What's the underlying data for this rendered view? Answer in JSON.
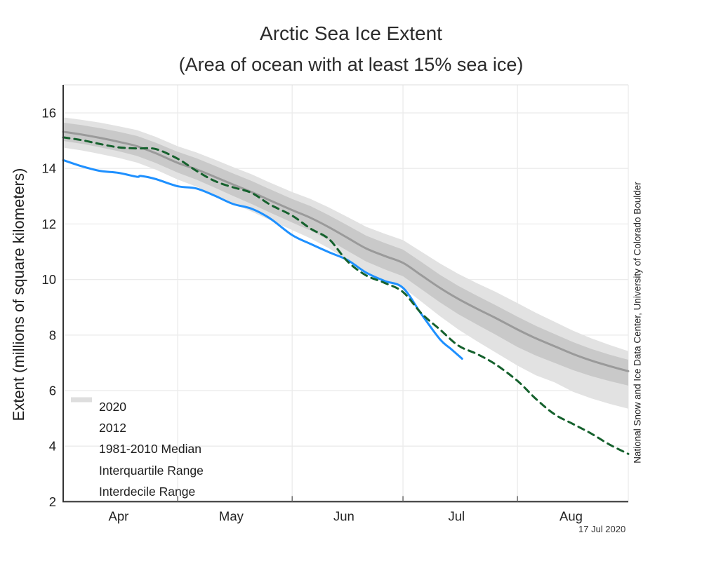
{
  "title": "Arctic Sea Ice Extent",
  "subtitle": "(Area of ocean with at least 15% sea ice)",
  "ylabel": "Extent (millions of square kilometers)",
  "attribution": "National Snow and Ice Data Center, University of Colorado Boulder",
  "date_stamp": "17 Jul 2020",
  "colors": {
    "line_2020": "#1E90FF",
    "line_2012": "#15612D",
    "median": "#9A9A9A",
    "iqr_band": "#C9C9C9",
    "idr_band": "#E2E2E2",
    "axis": "#333333",
    "grid": "#EBEBEB",
    "frame": "#DDDDDD",
    "text": "#222222"
  },
  "chart_data": {
    "type": "line",
    "title": "Arctic Sea Ice Extent",
    "subtitle": "(Area of ocean with at least 15% sea ice)",
    "xlabel": "",
    "ylabel": "Extent (millions of square kilometers)",
    "x_start_date": "Mar 31",
    "x_unit": "days since Mar 31",
    "xlim_days": [
      0,
      153
    ],
    "ylim": [
      2,
      17
    ],
    "yticks": [
      2,
      4,
      6,
      8,
      10,
      12,
      14,
      16
    ],
    "grid": true,
    "legend_position": "bottom-left",
    "month_labels": [
      {
        "label": "Apr",
        "day": 15
      },
      {
        "label": "May",
        "day": 45.5
      },
      {
        "label": "Jun",
        "day": 76
      },
      {
        "label": "Jul",
        "day": 106.5
      },
      {
        "label": "Aug",
        "day": 137.5
      }
    ],
    "month_boundary_days": [
      31,
      62,
      92,
      123
    ],
    "series": [
      {
        "name": "2020",
        "style": "solid",
        "color": "#1E90FF",
        "end_date": "17 Jul 2020",
        "days": [
          0,
          5,
          10,
          15,
          20,
          21,
          25,
          31,
          36,
          41,
          46,
          51,
          56,
          62,
          67,
          72,
          77,
          82,
          87,
          92,
          97,
          102,
          105,
          108
        ],
        "values": [
          14.3,
          14.08,
          13.91,
          13.84,
          13.7,
          13.73,
          13.62,
          13.36,
          13.28,
          13.02,
          12.72,
          12.55,
          12.2,
          11.6,
          11.28,
          10.98,
          10.7,
          10.25,
          9.95,
          9.7,
          8.75,
          7.85,
          7.5,
          7.15
        ]
      },
      {
        "name": "2012",
        "style": "dashed",
        "color": "#15612D",
        "days": [
          0,
          5,
          10,
          15,
          20,
          25,
          31,
          36,
          41,
          46,
          51,
          56,
          62,
          67,
          72,
          77,
          82,
          87,
          92,
          97,
          102,
          107,
          112,
          117,
          123,
          128,
          133,
          138,
          143,
          148,
          153
        ],
        "values": [
          15.12,
          15.02,
          14.88,
          14.76,
          14.72,
          14.7,
          14.35,
          13.92,
          13.55,
          13.32,
          13.12,
          12.7,
          12.3,
          11.83,
          11.45,
          10.65,
          10.15,
          9.88,
          9.55,
          8.78,
          8.2,
          7.62,
          7.32,
          6.95,
          6.35,
          5.7,
          5.15,
          4.8,
          4.45,
          4.05,
          3.72
        ]
      },
      {
        "name": "1981-2010 Median",
        "style": "solid",
        "color": "#9A9A9A",
        "days": [
          0,
          5,
          10,
          15,
          20,
          25,
          31,
          36,
          41,
          46,
          51,
          56,
          62,
          67,
          72,
          77,
          82,
          87,
          92,
          97,
          102,
          107,
          112,
          117,
          123,
          128,
          133,
          138,
          143,
          148,
          153
        ],
        "values": [
          15.32,
          15.22,
          15.1,
          14.96,
          14.8,
          14.55,
          14.2,
          13.97,
          13.7,
          13.42,
          13.15,
          12.85,
          12.5,
          12.22,
          11.88,
          11.5,
          11.12,
          10.85,
          10.6,
          10.15,
          9.7,
          9.3,
          8.95,
          8.62,
          8.2,
          7.88,
          7.6,
          7.32,
          7.08,
          6.88,
          6.7
        ]
      }
    ],
    "bands": [
      {
        "name": "Interdecile Range",
        "color": "#E2E2E2",
        "days": [
          0,
          5,
          10,
          15,
          20,
          25,
          31,
          36,
          41,
          46,
          51,
          56,
          62,
          67,
          72,
          77,
          82,
          87,
          92,
          97,
          102,
          107,
          112,
          117,
          123,
          128,
          133,
          138,
          143,
          148,
          153
        ],
        "upper": [
          15.84,
          15.75,
          15.65,
          15.52,
          15.38,
          15.14,
          14.8,
          14.58,
          14.32,
          14.05,
          13.79,
          13.49,
          13.15,
          12.9,
          12.59,
          12.25,
          11.9,
          11.65,
          11.42,
          11.0,
          10.58,
          10.2,
          9.87,
          9.56,
          9.15,
          8.8,
          8.48,
          8.16,
          7.88,
          7.64,
          7.42
        ],
        "lower": [
          14.75,
          14.65,
          14.52,
          14.38,
          14.21,
          13.96,
          13.6,
          13.35,
          13.05,
          12.75,
          12.45,
          12.14,
          11.78,
          11.48,
          11.12,
          10.7,
          10.28,
          9.99,
          9.72,
          9.2,
          8.68,
          8.2,
          7.78,
          7.38,
          6.9,
          6.55,
          6.3,
          5.96,
          5.72,
          5.52,
          5.35
        ]
      },
      {
        "name": "Interquartile Range",
        "color": "#C9C9C9",
        "days": [
          0,
          5,
          10,
          15,
          20,
          25,
          31,
          36,
          41,
          46,
          51,
          56,
          62,
          67,
          72,
          77,
          82,
          87,
          92,
          97,
          102,
          107,
          112,
          117,
          123,
          128,
          133,
          138,
          143,
          148,
          153
        ],
        "upper": [
          15.65,
          15.56,
          15.45,
          15.32,
          15.17,
          14.93,
          14.6,
          14.37,
          14.1,
          13.82,
          13.55,
          13.25,
          12.9,
          12.64,
          12.31,
          11.95,
          11.58,
          11.32,
          11.08,
          10.63,
          10.17,
          9.77,
          9.42,
          9.08,
          8.66,
          8.33,
          8.04,
          7.75,
          7.5,
          7.29,
          7.11
        ],
        "lower": [
          14.99,
          14.89,
          14.76,
          14.62,
          14.45,
          14.2,
          13.85,
          13.6,
          13.31,
          13.01,
          12.72,
          12.41,
          12.05,
          11.76,
          11.42,
          11.03,
          10.65,
          10.37,
          10.12,
          9.65,
          9.18,
          8.75,
          8.38,
          8.02,
          7.57,
          7.26,
          7.0,
          6.74,
          6.52,
          6.34,
          6.18
        ]
      }
    ],
    "legend": [
      {
        "label": "2020",
        "type": "line",
        "dash": false,
        "color": "#1E90FF"
      },
      {
        "label": "2012",
        "type": "line",
        "dash": true,
        "color": "#15612D"
      },
      {
        "label": "1981-2010 Median",
        "type": "line",
        "dash": false,
        "color": "#9A9A9A"
      },
      {
        "label": "Interquartile Range",
        "type": "band",
        "color": "#C4C4C4"
      },
      {
        "label": "Interdecile Range",
        "type": "band",
        "color": "#DEDEDE"
      }
    ]
  }
}
